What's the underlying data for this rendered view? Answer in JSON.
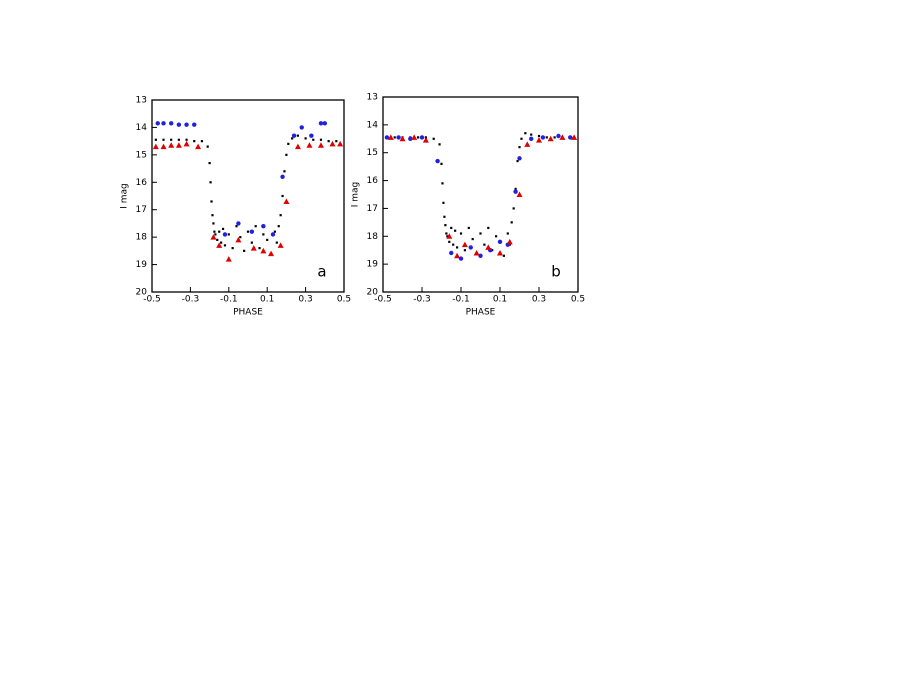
{
  "chart_data": [
    {
      "type": "scatter",
      "annotation": "a",
      "xlabel": "PHASE",
      "ylabel": "I mag",
      "xlim": [
        -0.5,
        0.5
      ],
      "ylim": [
        13,
        20
      ],
      "y_reversed": true,
      "xticks": [
        -0.5,
        -0.3,
        -0.1,
        0.1,
        0.3,
        0.5
      ],
      "yticks": [
        13,
        14,
        15,
        16,
        17,
        18,
        19,
        20
      ],
      "series": [
        {
          "color": "#000000",
          "marker": "dot",
          "x": [
            -0.48,
            -0.44,
            -0.4,
            -0.36,
            -0.32,
            -0.28,
            -0.24,
            -0.21,
            -0.2,
            -0.195,
            -0.19,
            -0.185,
            -0.18,
            -0.175,
            -0.17,
            -0.16,
            -0.15,
            -0.14,
            -0.13,
            -0.12,
            -0.1,
            -0.08,
            -0.06,
            -0.04,
            -0.02,
            0.0,
            0.02,
            0.04,
            0.06,
            0.08,
            0.1,
            0.12,
            0.14,
            0.15,
            0.16,
            0.17,
            0.18,
            0.19,
            0.2,
            0.21,
            0.23,
            0.26,
            0.3,
            0.34,
            0.38,
            0.42,
            0.46
          ],
          "values": [
            14.45,
            14.45,
            14.45,
            14.45,
            14.45,
            14.5,
            14.5,
            14.7,
            15.3,
            16.0,
            16.7,
            17.2,
            17.5,
            17.8,
            17.9,
            18.1,
            17.8,
            18.2,
            17.7,
            18.3,
            17.9,
            18.4,
            17.6,
            18.0,
            18.5,
            17.8,
            18.2,
            17.6,
            18.4,
            17.9,
            18.1,
            18.6,
            17.8,
            18.2,
            17.6,
            17.2,
            16.5,
            15.6,
            15.0,
            14.6,
            14.4,
            14.3,
            14.4,
            14.45,
            14.45,
            14.5,
            14.5
          ]
        },
        {
          "color": "#2020e0",
          "marker": "circle",
          "x": [
            -0.47,
            -0.44,
            -0.4,
            -0.36,
            -0.32,
            -0.28,
            -0.12,
            -0.05,
            0.02,
            0.08,
            0.13,
            0.18,
            0.24,
            0.28,
            0.33,
            0.38,
            0.4
          ],
          "values": [
            13.85,
            13.85,
            13.85,
            13.9,
            13.9,
            13.9,
            17.9,
            17.5,
            17.8,
            17.6,
            17.9,
            15.8,
            14.3,
            14.0,
            14.3,
            13.85,
            13.85
          ]
        },
        {
          "color": "#e00000",
          "marker": "triangle",
          "x": [
            -0.48,
            -0.44,
            -0.4,
            -0.36,
            -0.32,
            -0.26,
            -0.18,
            -0.15,
            -0.1,
            -0.05,
            0.03,
            0.08,
            0.12,
            0.17,
            0.2,
            0.26,
            0.32,
            0.38,
            0.44,
            0.48
          ],
          "values": [
            14.7,
            14.7,
            14.65,
            14.65,
            14.6,
            14.7,
            18.0,
            18.3,
            18.8,
            18.1,
            18.4,
            18.5,
            18.6,
            18.3,
            16.7,
            14.7,
            14.65,
            14.65,
            14.6,
            14.6
          ]
        }
      ]
    },
    {
      "type": "scatter",
      "annotation": "b",
      "xlabel": "PHASE",
      "ylabel": "I mag",
      "xlim": [
        -0.5,
        0.5
      ],
      "ylim": [
        13,
        20
      ],
      "y_reversed": true,
      "xticks": [
        -0.5,
        -0.3,
        -0.1,
        0.1,
        0.3,
        0.5
      ],
      "yticks": [
        13,
        14,
        15,
        16,
        17,
        18,
        19,
        20
      ],
      "series": [
        {
          "color": "#000000",
          "marker": "dot",
          "x": [
            -0.48,
            -0.44,
            -0.4,
            -0.36,
            -0.32,
            -0.28,
            -0.24,
            -0.21,
            -0.2,
            -0.195,
            -0.19,
            -0.185,
            -0.18,
            -0.175,
            -0.17,
            -0.16,
            -0.15,
            -0.14,
            -0.13,
            -0.12,
            -0.1,
            -0.08,
            -0.06,
            -0.04,
            -0.02,
            0.0,
            0.02,
            0.04,
            0.06,
            0.08,
            0.1,
            0.12,
            0.14,
            0.15,
            0.16,
            0.17,
            0.18,
            0.19,
            0.2,
            0.21,
            0.23,
            0.26,
            0.3,
            0.34,
            0.38,
            0.42,
            0.46
          ],
          "values": [
            14.45,
            14.45,
            14.45,
            14.45,
            14.45,
            14.45,
            14.5,
            14.7,
            15.4,
            16.1,
            16.8,
            17.3,
            17.6,
            17.9,
            18.0,
            18.2,
            17.7,
            18.3,
            17.8,
            18.4,
            17.9,
            18.5,
            17.7,
            18.1,
            18.6,
            17.9,
            18.3,
            17.7,
            18.5,
            18.0,
            18.2,
            18.7,
            17.9,
            18.3,
            17.5,
            17.0,
            16.3,
            15.3,
            14.8,
            14.5,
            14.3,
            14.35,
            14.4,
            14.45,
            14.45,
            14.45,
            14.45
          ]
        },
        {
          "color": "#2020e0",
          "marker": "circle",
          "x": [
            -0.48,
            -0.42,
            -0.36,
            -0.3,
            -0.22,
            -0.15,
            -0.1,
            -0.05,
            0.0,
            0.05,
            0.1,
            0.14,
            0.18,
            0.2,
            0.26,
            0.32,
            0.4,
            0.46
          ],
          "values": [
            14.45,
            14.45,
            14.5,
            14.45,
            15.3,
            18.6,
            18.8,
            18.4,
            18.7,
            18.5,
            18.2,
            18.3,
            16.4,
            15.2,
            14.5,
            14.45,
            14.4,
            14.45
          ]
        },
        {
          "color": "#e00000",
          "marker": "triangle",
          "x": [
            -0.46,
            -0.4,
            -0.34,
            -0.28,
            -0.16,
            -0.12,
            -0.08,
            -0.02,
            0.04,
            0.1,
            0.15,
            0.2,
            0.24,
            0.3,
            0.36,
            0.42,
            0.48
          ],
          "values": [
            14.45,
            14.5,
            14.45,
            14.55,
            18.0,
            18.7,
            18.3,
            18.6,
            18.4,
            18.6,
            18.2,
            16.5,
            14.7,
            14.55,
            14.5,
            14.45,
            14.45
          ]
        }
      ]
    }
  ]
}
